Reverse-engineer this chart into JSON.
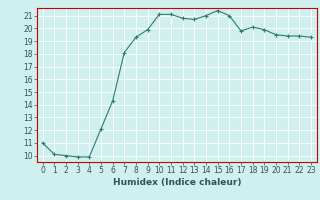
{
  "x": [
    0,
    1,
    2,
    3,
    4,
    5,
    6,
    7,
    8,
    9,
    10,
    11,
    12,
    13,
    14,
    15,
    16,
    17,
    18,
    19,
    20,
    21,
    22,
    23
  ],
  "y": [
    11.0,
    10.1,
    10.0,
    9.9,
    9.9,
    12.1,
    14.3,
    18.1,
    19.3,
    19.9,
    21.1,
    21.1,
    20.8,
    20.7,
    21.0,
    21.4,
    21.0,
    19.8,
    20.1,
    19.9,
    19.5,
    19.4,
    19.4,
    19.3
  ],
  "title": "",
  "xlabel": "Humidex (Indice chaleur)",
  "xlim": [
    -0.5,
    23.5
  ],
  "ylim": [
    9.5,
    21.6
  ],
  "yticks": [
    10,
    11,
    12,
    13,
    14,
    15,
    16,
    17,
    18,
    19,
    20,
    21
  ],
  "xticks": [
    0,
    1,
    2,
    3,
    4,
    5,
    6,
    7,
    8,
    9,
    10,
    11,
    12,
    13,
    14,
    15,
    16,
    17,
    18,
    19,
    20,
    21,
    22,
    23
  ],
  "line_color": "#2e7d6e",
  "marker": "+",
  "bg_color": "#cff0ee",
  "grid_color": "#ffffff",
  "border_color": "#cc0000",
  "label_fontsize": 6.5,
  "tick_fontsize": 5.5
}
